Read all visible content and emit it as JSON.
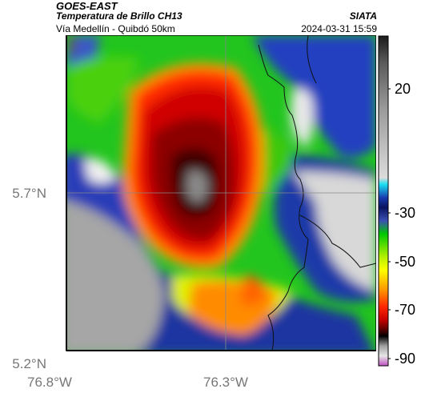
{
  "header": {
    "satellite": "GOES-EAST",
    "product": "Temperatura de Brillo CH13",
    "region": "Vía Medellín - Quibdó 50km",
    "brand": "SIATA",
    "timestamp": "2024-03-31 15:59"
  },
  "map": {
    "lat_labels": [
      "5.7°N",
      "5.2°N"
    ],
    "lon_labels": [
      "76.8°W",
      "76.3°W"
    ],
    "grid_lines": true
  },
  "colorbar": {
    "ticks": [
      "20",
      "-30",
      "-50",
      "-70",
      "-90"
    ],
    "colors": [
      "#1a1a1a",
      "#5a5a5a",
      "#9a9a9a",
      "#dcdcdc",
      "#19e0f0",
      "#1a3cb0",
      "#0a1460",
      "#3c50b4",
      "#00c800",
      "#b4f000",
      "#ffff00",
      "#ff9600",
      "#ff2800",
      "#c80000",
      "#5a0000",
      "#000000",
      "#a0a0a0",
      "#e6e6e6",
      "#c050c0"
    ]
  }
}
